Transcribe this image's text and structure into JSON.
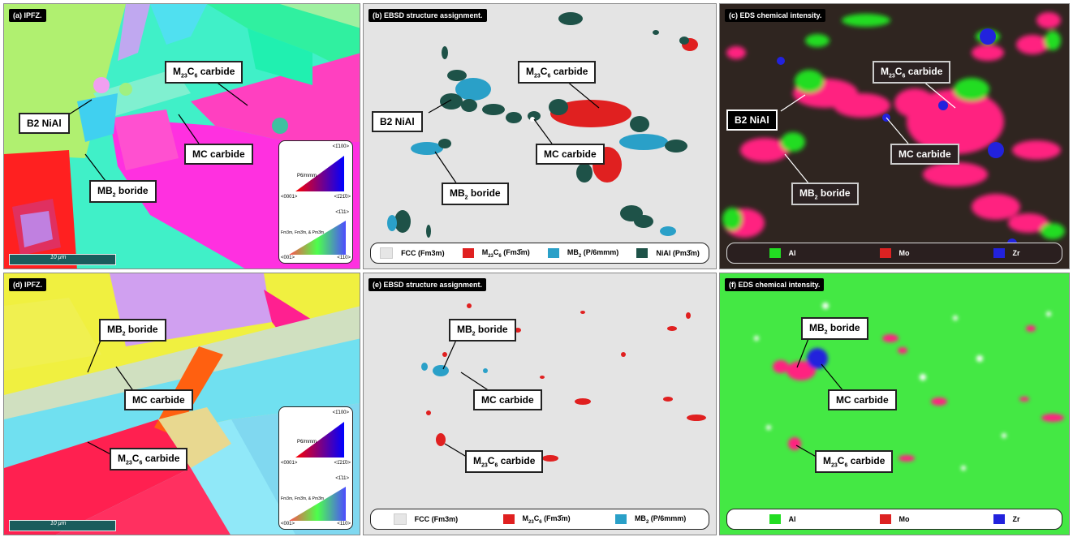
{
  "panels": {
    "a": {
      "label": "(a) IPFZ."
    },
    "b": {
      "label": "(b) EBSD structure assignment."
    },
    "c": {
      "label": "(c) EDS chemical intensity."
    },
    "d": {
      "label": "(d) IPFZ."
    },
    "e": {
      "label": "(e) EBSD structure assignment."
    },
    "f": {
      "label": "(f) EDS chemical intensity."
    }
  },
  "labels": {
    "m23c6_pre": "M",
    "m23c6_sub1": "23",
    "m23c6_mid": "C",
    "m23c6_sub2": "6",
    "m23c6_post": " carbide",
    "b2": "B2 NiAl",
    "mc": "MC carbide",
    "mb2_pre": "MB",
    "mb2_sub": "2",
    "mb2_post": " boride"
  },
  "scalebar": "10 μm",
  "key": {
    "top_left": "<0001>",
    "top_right_a": "<1̄21̄0>",
    "top_top": "<1̄100>",
    "top_name": "P6/mmm",
    "bot_left": "<001>",
    "bot_right": "<110>",
    "bot_top": "<1̄11>",
    "bot_name": "Fm3m, Fm3̄m, & Pm3̄m"
  },
  "legend_b": [
    {
      "name": "FCC (Fm3m)",
      "color": "#e6e6e6"
    },
    {
      "name_pre": "M",
      "sub1": "23",
      "mid": "C",
      "sub2": "6",
      "post": " (Fm3̄m)",
      "color": "#e02020"
    },
    {
      "name_pre": "MB",
      "sub1": "2",
      "post": " (P/6mmm)",
      "color": "#2aa0c8"
    },
    {
      "name": "NiAl (Pm3̄m)",
      "color": "#1e5248"
    }
  ],
  "legend_c": [
    {
      "name": "Al",
      "color": "#22dd22"
    },
    {
      "name": "Mo",
      "color": "#dd2222"
    },
    {
      "name": "Zr",
      "color": "#2222dd"
    }
  ]
}
